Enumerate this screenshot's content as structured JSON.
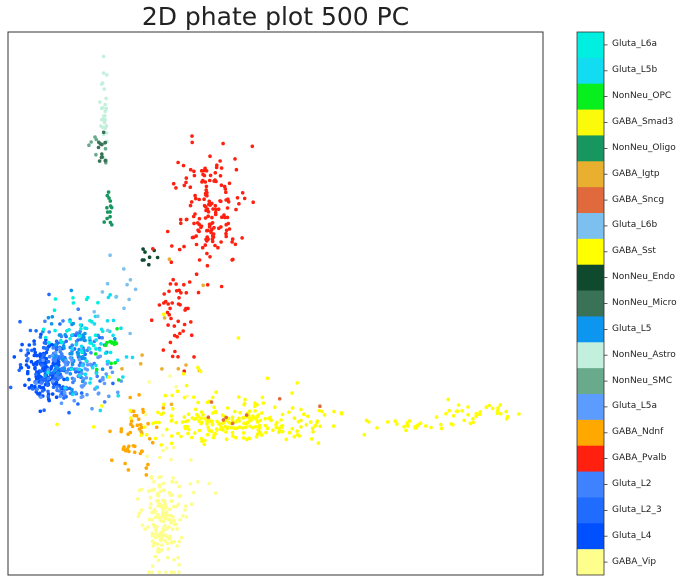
{
  "chart_data": {
    "type": "scatter",
    "title": "2D phate plot 500 PC",
    "xlabel": "",
    "ylabel": "",
    "grid": false,
    "legend": "colorbar-right",
    "categories": [
      {
        "name": "Gluta_L6a",
        "color": "#00efe0"
      },
      {
        "name": "Gluta_L5b",
        "color": "#12dcf2"
      },
      {
        "name": "NonNeu_OPC",
        "color": "#07ef1d"
      },
      {
        "name": "GABA_Smad3",
        "color": "#fafa0a"
      },
      {
        "name": "NonNeu_Oligo",
        "color": "#189660"
      },
      {
        "name": "GABA_Igtp",
        "color": "#e8b02e"
      },
      {
        "name": "GABA_Sncg",
        "color": "#e06a3c"
      },
      {
        "name": "Gluta_L6b",
        "color": "#7cc0f0"
      },
      {
        "name": "GABA_Sst",
        "color": "#ffff00"
      },
      {
        "name": "NonNeu_Endo",
        "color": "#0f4a2f"
      },
      {
        "name": "NonNeu_Micro",
        "color": "#3a7258"
      },
      {
        "name": "Gluta_L5",
        "color": "#0c96f0"
      },
      {
        "name": "NonNeu_Astro",
        "color": "#c2f0dc"
      },
      {
        "name": "NonNeu_SMC",
        "color": "#6aaa8c"
      },
      {
        "name": "Gluta_L5a",
        "color": "#5c9cff"
      },
      {
        "name": "GABA_Ndnf",
        "color": "#ffa800"
      },
      {
        "name": "GABA_Pvalb",
        "color": "#ff2010"
      },
      {
        "name": "Gluta_L2",
        "color": "#3f82ff"
      },
      {
        "name": "Gluta_L2_3",
        "color": "#206cff"
      },
      {
        "name": "Gluta_L4",
        "color": "#0050ff"
      },
      {
        "name": "GABA_Vip",
        "color": "#fefe8c"
      }
    ],
    "xlim": [
      0,
      1
    ],
    "ylim": [
      0,
      1
    ],
    "clusters": [
      {
        "category": "NonNeu_Astro",
        "cx": 0.18,
        "cy": 0.15,
        "sx": 0.004,
        "sy": 0.04,
        "n": 30
      },
      {
        "category": "NonNeu_SMC",
        "cx": 0.175,
        "cy": 0.21,
        "sx": 0.012,
        "sy": 0.02,
        "n": 8
      },
      {
        "category": "NonNeu_Micro",
        "cx": 0.176,
        "cy": 0.215,
        "sx": 0.004,
        "sy": 0.015,
        "n": 12
      },
      {
        "category": "NonNeu_Oligo",
        "cx": 0.188,
        "cy": 0.325,
        "sx": 0.004,
        "sy": 0.02,
        "n": 14
      },
      {
        "category": "NonNeu_Endo",
        "cx": 0.262,
        "cy": 0.412,
        "sx": 0.01,
        "sy": 0.01,
        "n": 8
      },
      {
        "category": "GABA_Pvalb",
        "cx": 0.375,
        "cy": 0.33,
        "sx": 0.03,
        "sy": 0.06,
        "n": 160
      },
      {
        "category": "GABA_Pvalb",
        "cx": 0.315,
        "cy": 0.52,
        "sx": 0.016,
        "sy": 0.045,
        "n": 45
      },
      {
        "category": "Gluta_L4",
        "cx": 0.07,
        "cy": 0.62,
        "sx": 0.022,
        "sy": 0.024,
        "n": 160
      },
      {
        "category": "Gluta_L2_3",
        "cx": 0.095,
        "cy": 0.62,
        "sx": 0.032,
        "sy": 0.034,
        "n": 110
      },
      {
        "category": "Gluta_L2",
        "cx": 0.11,
        "cy": 0.6,
        "sx": 0.035,
        "sy": 0.04,
        "n": 70
      },
      {
        "category": "Gluta_L5",
        "cx": 0.125,
        "cy": 0.59,
        "sx": 0.035,
        "sy": 0.04,
        "n": 60
      },
      {
        "category": "Gluta_L5a",
        "cx": 0.14,
        "cy": 0.64,
        "sx": 0.03,
        "sy": 0.03,
        "n": 60
      },
      {
        "category": "Gluta_L5b",
        "cx": 0.15,
        "cy": 0.58,
        "sx": 0.035,
        "sy": 0.05,
        "n": 50
      },
      {
        "category": "Gluta_L6a",
        "cx": 0.125,
        "cy": 0.55,
        "sx": 0.03,
        "sy": 0.04,
        "n": 30
      },
      {
        "category": "Gluta_L6b",
        "cx": 0.2,
        "cy": 0.5,
        "sx": 0.02,
        "sy": 0.04,
        "n": 14
      },
      {
        "category": "NonNeu_OPC",
        "cx": 0.19,
        "cy": 0.58,
        "sx": 0.012,
        "sy": 0.03,
        "n": 14
      },
      {
        "category": "GABA_Ndnf",
        "cx": 0.24,
        "cy": 0.73,
        "sx": 0.022,
        "sy": 0.04,
        "n": 45
      },
      {
        "category": "GABA_Igtp",
        "cx": 0.3,
        "cy": 0.58,
        "sx": 0.06,
        "sy": 0.1,
        "n": 12
      },
      {
        "category": "GABA_Sst",
        "cx": 0.43,
        "cy": 0.72,
        "sx": 0.09,
        "sy": 0.018,
        "n": 180
      },
      {
        "category": "GABA_Sst",
        "cx": 0.76,
        "cy": 0.725,
        "sx": 0.04,
        "sy": 0.004,
        "n": 25
      },
      {
        "category": "GABA_Sst",
        "cx": 0.88,
        "cy": 0.7,
        "sx": 0.045,
        "sy": 0.008,
        "n": 30
      },
      {
        "category": "GABA_Sst",
        "cx": 0.38,
        "cy": 0.65,
        "sx": 0.08,
        "sy": 0.06,
        "n": 25
      },
      {
        "category": "GABA_Smad3",
        "cx": 0.45,
        "cy": 0.72,
        "sx": 0.08,
        "sy": 0.015,
        "n": 40
      },
      {
        "category": "GABA_Sncg",
        "cx": 0.42,
        "cy": 0.7,
        "sx": 0.06,
        "sy": 0.015,
        "n": 8
      },
      {
        "category": "GABA_Vip",
        "cx": 0.29,
        "cy": 0.89,
        "sx": 0.018,
        "sy": 0.05,
        "n": 170
      },
      {
        "category": "GABA_Vip",
        "cx": 0.3,
        "cy": 0.79,
        "sx": 0.04,
        "sy": 0.07,
        "n": 20
      }
    ]
  }
}
